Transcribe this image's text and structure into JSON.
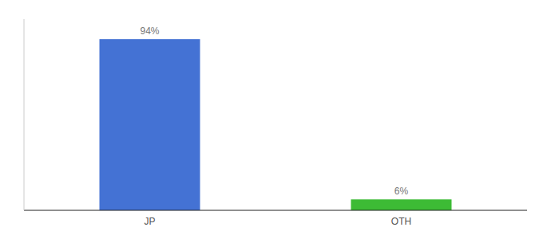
{
  "chart_data": {
    "type": "bar",
    "categories": [
      "JP",
      "OTH"
    ],
    "values": [
      94,
      6
    ],
    "value_labels": [
      "94%",
      "6%"
    ],
    "colors": [
      "#4472d4",
      "#3dbb35"
    ],
    "ylim": [
      0,
      105
    ],
    "tick_labels": "x",
    "data_labels": true
  }
}
